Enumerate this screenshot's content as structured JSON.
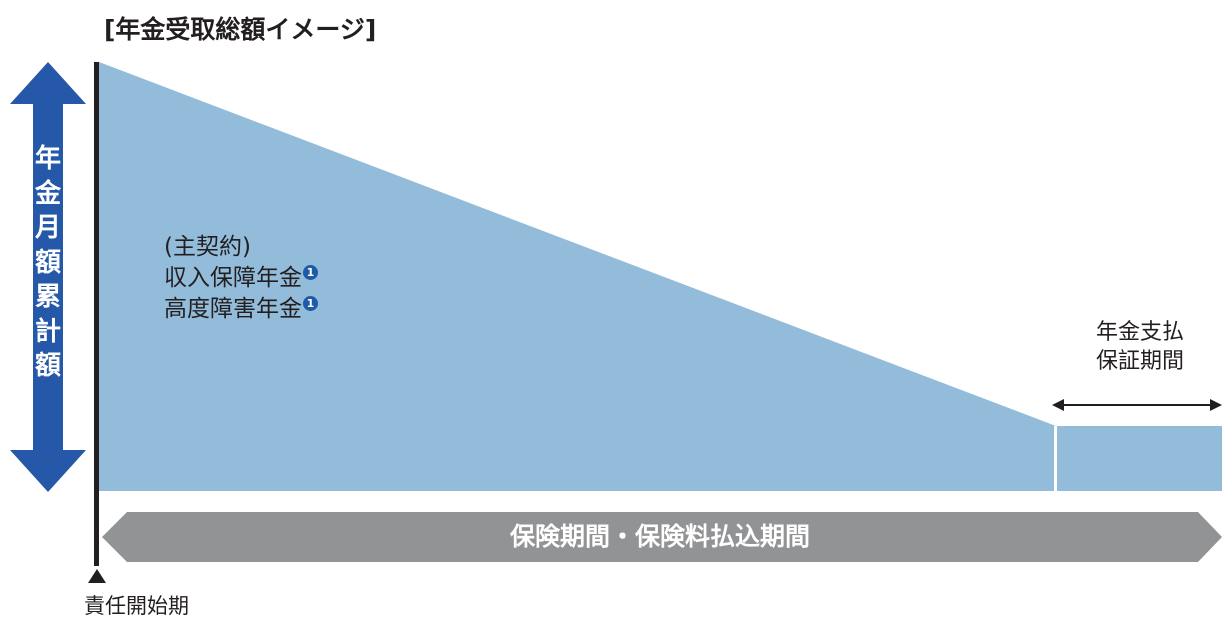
{
  "title": "[年金受取総額イメージ]",
  "y_axis_label": [
    "年",
    "金",
    "月",
    "額",
    "累",
    "計",
    "額"
  ],
  "main_contract": {
    "line1": "(主契約)",
    "line2": "収入保障年金",
    "line3": "高度障害年金",
    "marker": "1"
  },
  "guarantee_period": {
    "line1": "年金支払",
    "line2": "保証期間"
  },
  "period_bar_label": "保険期間・保険料払込期間",
  "start_label": "責任開始期",
  "colors": {
    "area_fill": "#93bcdb",
    "axis_arrow": "#2558a8",
    "period_bar": "#929395",
    "axis_line": "#231f20",
    "marker": "#1d5aa8"
  }
}
